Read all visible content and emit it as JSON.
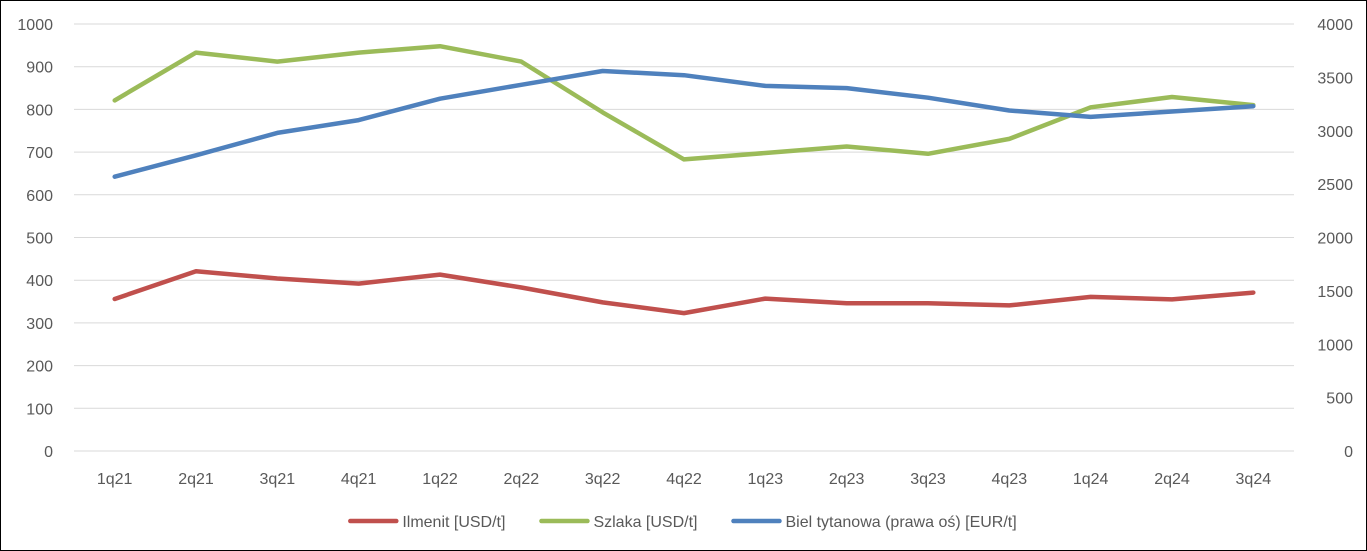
{
  "chart_data": {
    "type": "line",
    "categories": [
      "1q21",
      "2q21",
      "3q21",
      "4q21",
      "1q22",
      "2q22",
      "3q22",
      "4q22",
      "1q23",
      "2q23",
      "3q23",
      "4q23",
      "1q24",
      "2q24",
      "3q24"
    ],
    "series": [
      {
        "name": "Ilmenit [USD/t]",
        "axis": "left",
        "color": "#C0504D",
        "values": [
          356,
          421,
          404,
          392,
          413,
          383,
          348,
          323,
          357,
          346,
          346,
          341,
          361,
          355,
          371
        ]
      },
      {
        "name": "Szlaka [USD/t]",
        "axis": "left",
        "color": "#9BBB59",
        "values": [
          821,
          933,
          912,
          933,
          948,
          912,
          793,
          683,
          698,
          713,
          696,
          731,
          805,
          829,
          810
        ]
      },
      {
        "name": "Biel tytanowa (prawa oś) [EUR/t]",
        "axis": "right",
        "color": "#4F81BD",
        "values": [
          2570,
          2770,
          2980,
          3100,
          3300,
          3430,
          3560,
          3520,
          3420,
          3400,
          3310,
          3190,
          3130,
          3180,
          3230
        ]
      }
    ],
    "y_left": {
      "min": 0,
      "max": 1000,
      "step": 100,
      "ticks": [
        "0",
        "100",
        "200",
        "300",
        "400",
        "500",
        "600",
        "700",
        "800",
        "900",
        "1000"
      ]
    },
    "y_right": {
      "min": 0,
      "max": 4000,
      "step": 500,
      "ticks": [
        "0",
        "500",
        "1000",
        "1500",
        "2000",
        "2500",
        "3000",
        "3500",
        "4000"
      ]
    },
    "grid": true,
    "legend_position": "bottom"
  }
}
